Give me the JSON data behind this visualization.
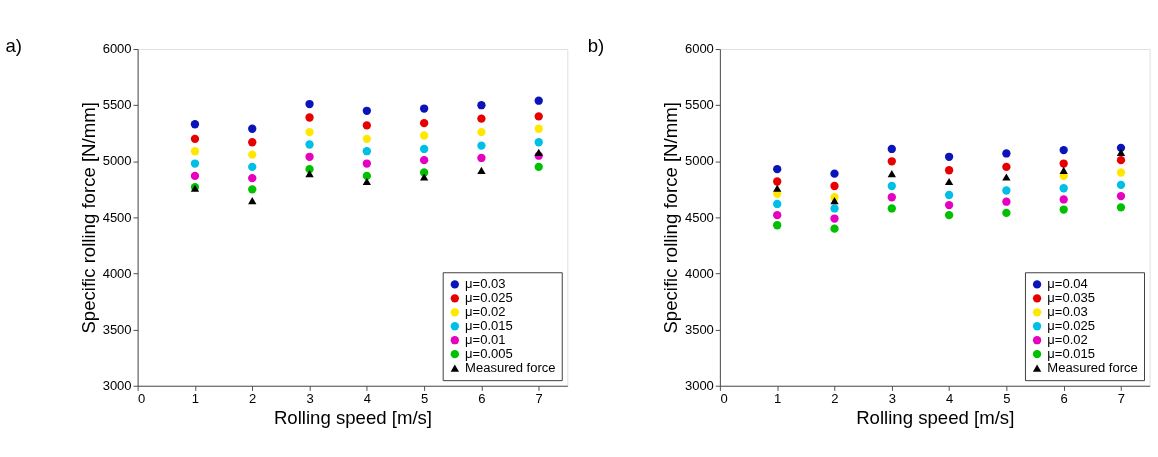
{
  "chart_data": [
    {
      "type": "scatter",
      "title": "a)",
      "xlabel": "Rolling speed [m/s]",
      "ylabel": "Specific rolling force [N/mm]",
      "x": [
        1,
        2,
        3,
        4,
        5,
        6,
        7
      ],
      "xlim": [
        0,
        7.5
      ],
      "xticks": [
        0,
        1,
        2,
        3,
        4,
        5,
        6,
        7
      ],
      "ylim": [
        3000,
        6000
      ],
      "yticks": [
        3000,
        3500,
        4000,
        4500,
        5000,
        5500,
        6000
      ],
      "grid": false,
      "legend": "bottom right",
      "series": [
        {
          "name": "μ=0.03",
          "color": "#0a14b8",
          "marker": "circle",
          "values": [
            5330,
            5290,
            5510,
            5450,
            5470,
            5500,
            5540
          ]
        },
        {
          "name": "μ=0.025",
          "color": "#e60000",
          "marker": "circle",
          "values": [
            5200,
            5170,
            5390,
            5320,
            5340,
            5380,
            5400
          ]
        },
        {
          "name": "μ=0.02",
          "color": "#ffe800",
          "marker": "circle",
          "values": [
            5090,
            5060,
            5260,
            5200,
            5230,
            5260,
            5290
          ]
        },
        {
          "name": "μ=0.015",
          "color": "#00bfe6",
          "marker": "circle",
          "values": [
            4980,
            4950,
            5150,
            5090,
            5110,
            5140,
            5170
          ]
        },
        {
          "name": "μ=0.01",
          "color": "#e600bf",
          "marker": "circle",
          "values": [
            4870,
            4850,
            5040,
            4980,
            5010,
            5030,
            5050
          ]
        },
        {
          "name": "μ=0.005",
          "color": "#00c000",
          "marker": "circle",
          "values": [
            4770,
            4750,
            4930,
            4870,
            4900,
            null,
            4950
          ]
        },
        {
          "name": "Measured force",
          "color": "#000000",
          "marker": "triangle",
          "values": [
            4760,
            4650,
            4890,
            4820,
            4860,
            4920,
            5080
          ]
        }
      ]
    },
    {
      "type": "scatter",
      "title": "b)",
      "xlabel": "Rolling speed [m/s]",
      "ylabel": "Specific rolling force [N/mm]",
      "x": [
        1,
        2,
        3,
        4,
        5,
        6,
        7
      ],
      "xlim": [
        0,
        7.5
      ],
      "xticks": [
        0,
        1,
        2,
        3,
        4,
        5,
        6,
        7
      ],
      "ylim": [
        3000,
        6000
      ],
      "yticks": [
        3000,
        3500,
        4000,
        4500,
        5000,
        5500,
        6000
      ],
      "grid": false,
      "legend": "bottom right",
      "series": [
        {
          "name": "μ=0.04",
          "color": "#0a14b8",
          "marker": "circle",
          "values": [
            4930,
            4890,
            5110,
            5040,
            5070,
            5100,
            5120
          ]
        },
        {
          "name": "μ=0.035",
          "color": "#e60000",
          "marker": "circle",
          "values": [
            4820,
            4780,
            5000,
            4920,
            4950,
            4980,
            5010
          ]
        },
        {
          "name": "μ=0.03",
          "color": "#ffe800",
          "marker": "circle",
          "values": [
            4710,
            4680,
            null,
            null,
            null,
            4870,
            4900
          ]
        },
        {
          "name": "μ=0.025",
          "color": "#00bfe6",
          "marker": "circle",
          "values": [
            4620,
            4580,
            4780,
            4700,
            4740,
            4760,
            4790
          ]
        },
        {
          "name": "μ=0.02",
          "color": "#e600bf",
          "marker": "circle",
          "values": [
            4520,
            4490,
            4680,
            4610,
            4640,
            4660,
            4690
          ]
        },
        {
          "name": "μ=0.015",
          "color": "#00c000",
          "marker": "circle",
          "values": [
            4430,
            4400,
            4580,
            4520,
            4540,
            4570,
            4590
          ]
        },
        {
          "name": "Measured force",
          "color": "#000000",
          "marker": "triangle",
          "values": [
            4760,
            4650,
            4890,
            4820,
            4860,
            4920,
            5080
          ]
        }
      ]
    }
  ]
}
